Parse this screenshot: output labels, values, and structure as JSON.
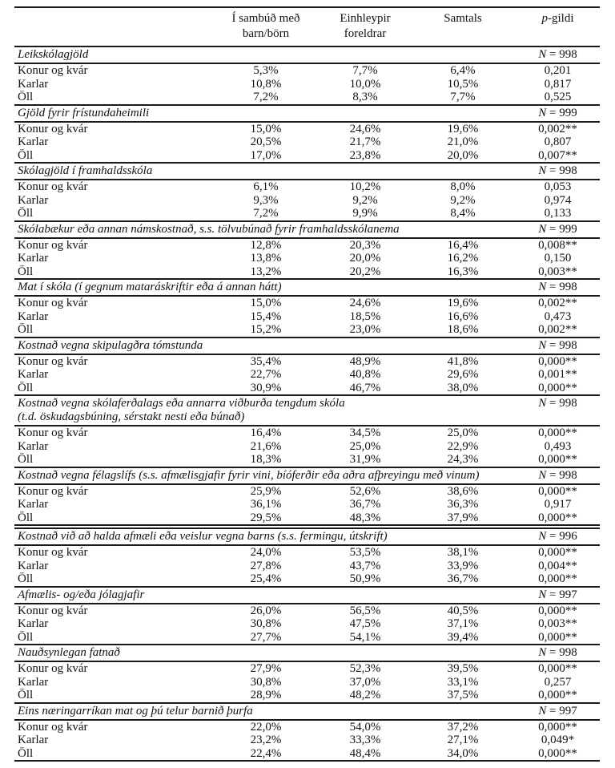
{
  "page": {
    "background": "#ffffff",
    "text_color": "#121212",
    "rule_color": "#1a1a1a"
  },
  "table": {
    "n_symbol": "N",
    "header": {
      "col2": [
        "Í sambúð með",
        "barn/börn"
      ],
      "col3": [
        "Einhleypir",
        "foreldrar"
      ],
      "col4": "Samtals",
      "p_italic": "p",
      "p_rest": "-gildi"
    },
    "sections": [
      {
        "title": "Leikskólagjöld",
        "title2": "",
        "n": "= 998",
        "group_break": false,
        "rows": [
          {
            "label": "Konur og kvár",
            "cohabiting": "5,3%",
            "single": "7,7%",
            "total": "6,4%",
            "p": "0,201"
          },
          {
            "label": "Karlar",
            "cohabiting": "10,8%",
            "single": "10,0%",
            "total": "10,5%",
            "p": "0,817"
          },
          {
            "label": "Öll",
            "cohabiting": "7,2%",
            "single": "8,3%",
            "total": "7,7%",
            "p": "0,525"
          }
        ]
      },
      {
        "title": "Gjöld fyrir frístundaheimili",
        "title2": "",
        "n": "= 999",
        "group_break": false,
        "rows": [
          {
            "label": "Konur og kvár",
            "cohabiting": "15,0%",
            "single": "24,6%",
            "total": "19,6%",
            "p": "0,002**"
          },
          {
            "label": "Karlar",
            "cohabiting": "20,5%",
            "single": "21,7%",
            "total": "21,0%",
            "p": "0,807"
          },
          {
            "label": "Öll",
            "cohabiting": "17,0%",
            "single": "23,8%",
            "total": "20,0%",
            "p": "0,007**"
          }
        ]
      },
      {
        "title": "Skólagjöld í framhaldsskóla",
        "title2": "",
        "n": "= 998",
        "group_break": false,
        "rows": [
          {
            "label": "Konur og kvár",
            "cohabiting": "6,1%",
            "single": "10,2%",
            "total": "8,0%",
            "p": "0,053"
          },
          {
            "label": "Karlar",
            "cohabiting": "9,3%",
            "single": "9,2%",
            "total": "9,2%",
            "p": "0,974"
          },
          {
            "label": "Öll",
            "cohabiting": "7,2%",
            "single": "9,9%",
            "total": "8,4%",
            "p": "0,133"
          }
        ]
      },
      {
        "title": "Skólabækur eða annan námskostnað, s.s. tölvubúnað fyrir framhaldsskólanema",
        "title2": "",
        "n": "= 999",
        "group_break": false,
        "rows": [
          {
            "label": "Konur og kvár",
            "cohabiting": "12,8%",
            "single": "20,3%",
            "total": "16,4%",
            "p": "0,008**"
          },
          {
            "label": "Karlar",
            "cohabiting": "13,8%",
            "single": "20,0%",
            "total": "16,2%",
            "p": "0,150"
          },
          {
            "label": "Öll",
            "cohabiting": "13,2%",
            "single": "20,2%",
            "total": "16,3%",
            "p": "0,003**"
          }
        ]
      },
      {
        "title": "Mat í skóla (í gegnum mataráskriftir eða á annan hátt)",
        "title2": "",
        "n": "= 998",
        "group_break": false,
        "rows": [
          {
            "label": "Konur og kvár",
            "cohabiting": "15,0%",
            "single": "24,6%",
            "total": "19,6%",
            "p": "0,002**"
          },
          {
            "label": "Karlar",
            "cohabiting": "15,4%",
            "single": "18,5%",
            "total": "16,6%",
            "p": "0,473"
          },
          {
            "label": "Öll",
            "cohabiting": "15,2%",
            "single": "23,0%",
            "total": "18,6%",
            "p": "0,002**"
          }
        ]
      },
      {
        "title": "Kostnað vegna skipulagðra tómstunda",
        "title2": "",
        "n": "= 998",
        "group_break": false,
        "rows": [
          {
            "label": "Konur og kvár",
            "cohabiting": "35,4%",
            "single": "48,9%",
            "total": "41,8%",
            "p": "0,000**"
          },
          {
            "label": "Karlar",
            "cohabiting": "22,7%",
            "single": "40,8%",
            "total": "29,6%",
            "p": "0,001**"
          },
          {
            "label": "Öll",
            "cohabiting": "30,9%",
            "single": "46,7%",
            "total": "38,0%",
            "p": "0,000**"
          }
        ]
      },
      {
        "title": "Kostnað vegna skólaferðalags eða annarra viðburða tengdum skóla",
        "title2": "(t.d. öskudagsbúning, sérstakt nesti eða búnað)",
        "n": "= 998",
        "group_break": false,
        "rows": [
          {
            "label": "Konur og kvár",
            "cohabiting": "16,4%",
            "single": "34,5%",
            "total": "25,0%",
            "p": "0,000**"
          },
          {
            "label": "Karlar",
            "cohabiting": "21,6%",
            "single": "25,0%",
            "total": "22,9%",
            "p": "0,493"
          },
          {
            "label": "Öll",
            "cohabiting": "18,3%",
            "single": "31,9%",
            "total": "24,3%",
            "p": "0,000**"
          }
        ]
      },
      {
        "title": "Kostnað vegna félagslífs (s.s. afmælisgjafir fyrir vini, bíóferðir eða aðra afþreyingu með vinum)",
        "title2": "",
        "n": "= 998",
        "group_break": false,
        "rows": [
          {
            "label": "Konur og kvár",
            "cohabiting": "25,9%",
            "single": "52,6%",
            "total": "38,6%",
            "p": "0,000**"
          },
          {
            "label": "Karlar",
            "cohabiting": "36,1%",
            "single": "36,7%",
            "total": "36,3%",
            "p": "0,917"
          },
          {
            "label": "Öll",
            "cohabiting": "29,5%",
            "single": "48,3%",
            "total": "37,9%",
            "p": "0,000**"
          }
        ]
      },
      {
        "title": "Kostnað við að halda afmæli eða veislur vegna barns (s.s. fermingu, útskrift)",
        "title2": "",
        "n": "= 996",
        "group_break": true,
        "rows": [
          {
            "label": "Konur og kvár",
            "cohabiting": "24,0%",
            "single": "53,5%",
            "total": "38,1%",
            "p": "0,000**"
          },
          {
            "label": "Karlar",
            "cohabiting": "27,8%",
            "single": "43,7%",
            "total": "33,9%",
            "p": "0,004**"
          },
          {
            "label": "Öll",
            "cohabiting": "25,4%",
            "single": "50,9%",
            "total": "36,7%",
            "p": "0,000**"
          }
        ]
      },
      {
        "title": "Afmælis- og/eða jólagjafir",
        "title2": "",
        "n": "= 997",
        "group_break": false,
        "rows": [
          {
            "label": "Konur og kvár",
            "cohabiting": "26,0%",
            "single": "56,5%",
            "total": "40,5%",
            "p": "0,000**"
          },
          {
            "label": "Karlar",
            "cohabiting": "30,8%",
            "single": "47,5%",
            "total": "37,1%",
            "p": "0,003**"
          },
          {
            "label": "Öll",
            "cohabiting": "27,7%",
            "single": "54,1%",
            "total": "39,4%",
            "p": "0,000**"
          }
        ]
      },
      {
        "title": "Nauðsynlegan fatnað",
        "title2": "",
        "n": "= 998",
        "group_break": false,
        "rows": [
          {
            "label": "Konur og kvár",
            "cohabiting": "27,9%",
            "single": "52,3%",
            "total": "39,5%",
            "p": "0,000**"
          },
          {
            "label": "Karlar",
            "cohabiting": "30,8%",
            "single": "37,0%",
            "total": "33,1%",
            "p": "0,257"
          },
          {
            "label": "Öll",
            "cohabiting": "28,9%",
            "single": "48,2%",
            "total": "37,5%",
            "p": "0,000**"
          }
        ]
      },
      {
        "title": "Eins næringarríkan mat og þú telur barnið þurfa",
        "title2": "",
        "n": "= 997",
        "group_break": false,
        "rows": [
          {
            "label": "Konur og kvár",
            "cohabiting": "22,0%",
            "single": "54,0%",
            "total": "37,2%",
            "p": "0,000**"
          },
          {
            "label": "Karlar",
            "cohabiting": "23,2%",
            "single": "33,3%",
            "total": "27,1%",
            "p": "0,049*"
          },
          {
            "label": "Öll",
            "cohabiting": "22,4%",
            "single": "48,4%",
            "total": "34,0%",
            "p": "0,000**"
          }
        ]
      }
    ]
  }
}
